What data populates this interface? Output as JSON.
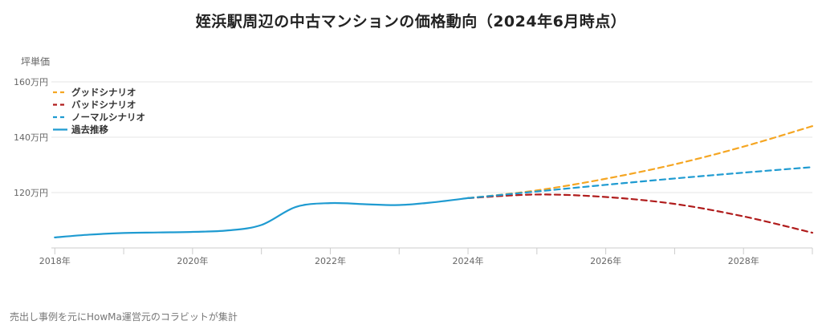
{
  "title": "姪浜駅周辺の中古マンションの価格動向（2024年6月時点）",
  "source_note": "売出し事例を元にHowMa運営元のコラビットが集計",
  "chart_data": {
    "type": "line",
    "ylabel": "坪単価",
    "y_ticks": [
      {
        "value": 120,
        "label": "120万円"
      },
      {
        "value": 140,
        "label": "140万円"
      },
      {
        "value": 160,
        "label": "160万円"
      }
    ],
    "x_ticks": [
      {
        "value": 2018,
        "label": "2018年"
      },
      {
        "value": 2020,
        "label": "2020年"
      },
      {
        "value": 2022,
        "label": "2022年"
      },
      {
        "value": 2024,
        "label": "2024年"
      },
      {
        "value": 2026,
        "label": "2026年"
      },
      {
        "value": 2028,
        "label": "2028年"
      }
    ],
    "xlim": [
      2017.95,
      2029.0
    ],
    "ylim": [
      100,
      160
    ],
    "grid": "horizontal",
    "legend_position": "top-left",
    "series": [
      {
        "name": "グッドシナリオ",
        "color": "#f5a623",
        "dash": "dashed",
        "x": [
          2024.0,
          2025.0,
          2026.0,
          2027.0,
          2028.0,
          2029.0
        ],
        "y": [
          118.0,
          120.8,
          125.0,
          130.2,
          136.6,
          144.0
        ]
      },
      {
        "name": "バッドシナリオ",
        "color": "#b01c1c",
        "dash": "dashed",
        "x": [
          2024.0,
          2025.0,
          2026.0,
          2027.0,
          2028.0,
          2029.0
        ],
        "y": [
          118.0,
          119.3,
          118.4,
          115.9,
          111.4,
          105.5
        ]
      },
      {
        "name": "ノーマルシナリオ",
        "color": "#1f9bd1",
        "dash": "dashed",
        "x": [
          2024.0,
          2025.0,
          2026.0,
          2027.0,
          2028.0,
          2029.0
        ],
        "y": [
          118.0,
          120.4,
          122.8,
          125.1,
          127.2,
          129.2
        ]
      },
      {
        "name": "過去推移",
        "color": "#1f9bd1",
        "dash": "solid",
        "x": [
          2018.0,
          2018.5,
          2019.0,
          2019.5,
          2020.0,
          2020.5,
          2021.0,
          2021.5,
          2022.0,
          2022.5,
          2023.0,
          2023.5,
          2024.0
        ],
        "y": [
          103.8,
          104.8,
          105.4,
          105.6,
          105.8,
          106.3,
          108.3,
          114.8,
          116.2,
          115.8,
          115.5,
          116.5,
          118.0
        ]
      }
    ]
  }
}
